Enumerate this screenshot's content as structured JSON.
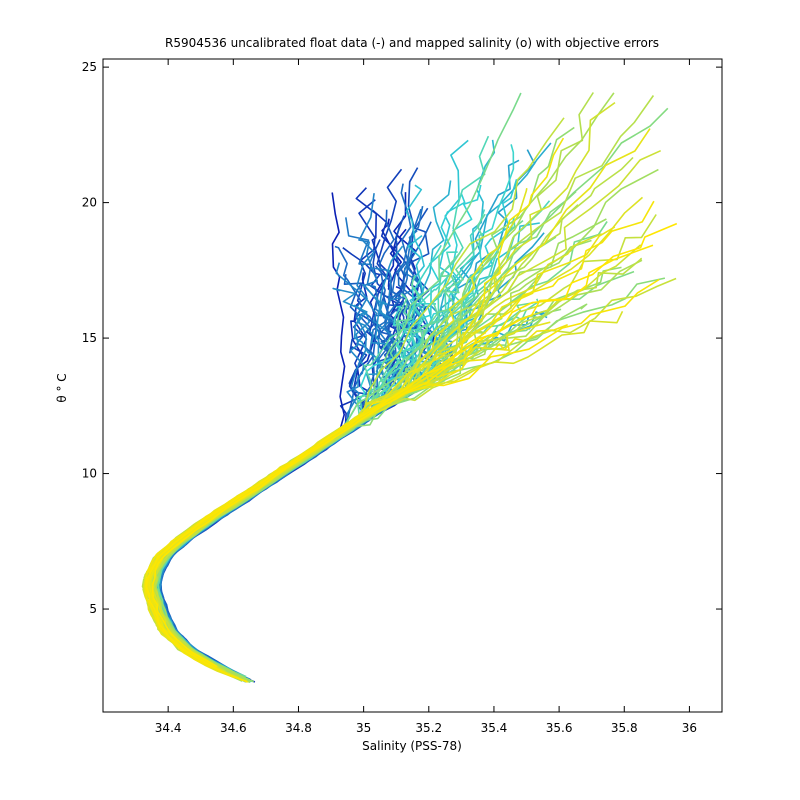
{
  "chart_data": {
    "type": "line",
    "title": "R5904536 uncalibrated float data (-) and mapped salinity (o) with objective errors",
    "xlabel": "Salinity (PSS-78)",
    "ylabel": "θ ° C",
    "xlim": [
      34.2,
      36.1
    ],
    "ylim": [
      1.2,
      25.3
    ],
    "xticks": [
      34.4,
      34.6,
      34.8,
      35,
      35.2,
      35.4,
      35.6,
      35.8,
      36
    ],
    "xtick_labels": [
      "34.4",
      "34.6",
      "34.8",
      "35",
      "35.2",
      "35.4",
      "35.6",
      "35.8",
      "36"
    ],
    "yticks": [
      5,
      10,
      15,
      20,
      25
    ],
    "ytick_labels": [
      "5",
      "10",
      "15",
      "20",
      "25"
    ],
    "grid": false,
    "colormap": "blue-cyan-yellow (profile order)",
    "colors": {
      "start": "#0a1fb4",
      "middle": "#33d4d6",
      "end": "#ffe600"
    },
    "deep_branch": {
      "s": [
        34.66,
        34.6,
        34.53,
        34.46,
        34.4,
        34.37,
        34.35,
        34.36,
        34.39,
        34.45,
        34.53,
        34.62,
        34.72,
        34.82,
        34.92,
        35.02,
        35.12,
        35.22,
        35.32,
        35.42,
        35.52,
        35.62,
        35.72,
        35.8
      ],
      "t": [
        2.3,
        2.6,
        3.0,
        3.5,
        4.2,
        5.0,
        5.8,
        6.4,
        7.0,
        7.6,
        8.3,
        9.0,
        9.8,
        10.6,
        11.4,
        12.2,
        12.9,
        13.7,
        14.5,
        15.3,
        16.1,
        16.9,
        17.7,
        18.3
      ]
    },
    "profile_count": 120,
    "surface_envelope": {
      "blue": {
        "s_range": [
          34.9,
          35.2
        ],
        "t_max": 21.3
      },
      "cyan": {
        "s_range": [
          35.1,
          35.6
        ],
        "t_max": 22.8
      },
      "yellow": {
        "s_range": [
          35.5,
          35.95
        ],
        "t_max": 24.3
      }
    }
  }
}
